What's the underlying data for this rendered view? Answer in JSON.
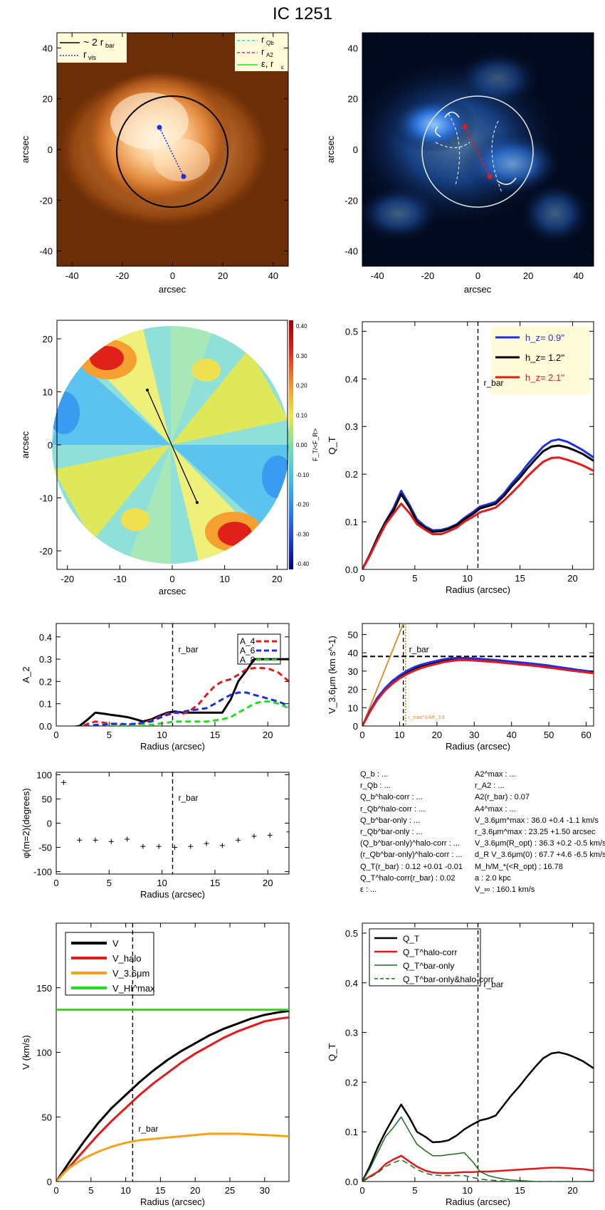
{
  "title": "IC 1251",
  "colors": {
    "black": "#000000",
    "blue": "#1f2fe0",
    "red": "#e01b1b",
    "orange": "#f2a21c",
    "green": "#22dd22",
    "darkgreen": "#1c6e1c",
    "cyan": "#28d8e8",
    "magenta": "#e0287f"
  },
  "panel1": {
    "xlabel": "arcsec",
    "ylabel": "arcsec",
    "ticks": [
      "-40",
      "-20",
      "0",
      "20",
      "40"
    ],
    "legend_left": [
      {
        "label": "~ 2 r",
        "sub": "bar",
        "style": "black-solid"
      },
      {
        "label": "r",
        "sub": "vis",
        "style": "blue-dotted"
      }
    ],
    "legend_right": [
      {
        "label": "r",
        "sub": "Qb",
        "style": "cyan-dashed"
      },
      {
        "label": "r",
        "sub": "A2",
        "style": "magenta-dashed"
      },
      {
        "label": "ε, r",
        "sub": "ε",
        "style": "green-solid"
      }
    ]
  },
  "panel2": {
    "xlabel": "arcsec",
    "ylabel": "arcsec",
    "ticks": [
      "-40",
      "-20",
      "0",
      "20",
      "40"
    ]
  },
  "panel3": {
    "xlabel": "arcsec",
    "ylabel": "arcsec",
    "xticks": [
      "-20",
      "-10",
      "0",
      "10",
      "20"
    ],
    "yticks": [
      "-20",
      "-10",
      "0",
      "10",
      "20"
    ],
    "colorbar_label": "F_T/<F_R>",
    "colorbar_ticks": [
      "0.40",
      "0.30",
      "0.20",
      "0.10",
      "0.00",
      "-0.10",
      "-0.20",
      "-0.30",
      "-0.40"
    ]
  },
  "panel7_text": {
    "left": [
      "Q_b : ...",
      "r_Qb : ...",
      "Q_b^halo-corr : ...",
      "r_Qb^halo-corr : ...",
      "Q_b^bar-only : ...",
      "r_Qb^bar-only : ...",
      "(Q_b^bar-only)^halo-corr : ...",
      "(r_Qb^bar-only)^halo-corr : ...",
      "Q_T(r_bar) : 0.12 +0.01 -0.01",
      "Q_T^halo-corr(r_bar) : 0.02",
      "ε : ..."
    ],
    "right": [
      "A2^max : ...",
      "r_A2 : ...",
      "A2(r_bar) : 0.07",
      "A4^max : ...",
      "V_3.6μm^max : 36.0 +0.4 -1.1 km/s",
      "r_3.6μm^max : 23.25 +1.50 arcsec",
      "V_3.6μm(R_opt) : 36.3 +0.2 -0.5 km/s",
      "d_R V_3.6μm(0) : 67.7 +4.6 -6.5 km/s/kpc",
      "M_h/M_*(<R_opt) : 16.78",
      "a : 2.0 kpc",
      "V_∞ : 160.1 km/s"
    ]
  },
  "chart_data": [
    {
      "id": "qt_hz",
      "type": "line",
      "xlabel": "Radius (arcsec)",
      "ylabel": "Q_T",
      "xlim": [
        0,
        22
      ],
      "ylim": [
        0,
        0.52
      ],
      "xticks": [
        0,
        5,
        10,
        15,
        20
      ],
      "yticks": [
        0.0,
        0.1,
        0.2,
        0.3,
        0.4,
        0.5
      ],
      "vline": {
        "x": 11,
        "label": "r_bar"
      },
      "legend": "top-right",
      "x": [
        0,
        0.7,
        1.5,
        2.2,
        3.0,
        3.7,
        4.5,
        5.2,
        6.0,
        6.7,
        7.5,
        8.2,
        9.0,
        9.7,
        10.5,
        11.2,
        12.0,
        12.7,
        13.5,
        14.2,
        15.0,
        15.7,
        16.5,
        17.2,
        18.0,
        18.7,
        19.5,
        20.2,
        21.0,
        22.0
      ],
      "series": [
        {
          "name": "h_z=  0.9''",
          "color": "#1f2fe0",
          "values": [
            0,
            0.03,
            0.07,
            0.1,
            0.13,
            0.165,
            0.135,
            0.105,
            0.09,
            0.082,
            0.083,
            0.087,
            0.095,
            0.108,
            0.12,
            0.132,
            0.137,
            0.142,
            0.16,
            0.18,
            0.2,
            0.22,
            0.24,
            0.258,
            0.27,
            0.273,
            0.268,
            0.26,
            0.25,
            0.235
          ]
        },
        {
          "name": "h_z=  1.2''",
          "color": "#000000",
          "values": [
            0,
            0.03,
            0.068,
            0.098,
            0.125,
            0.158,
            0.13,
            0.1,
            0.087,
            0.079,
            0.08,
            0.085,
            0.093,
            0.105,
            0.116,
            0.128,
            0.133,
            0.138,
            0.155,
            0.174,
            0.193,
            0.212,
            0.232,
            0.248,
            0.258,
            0.26,
            0.256,
            0.25,
            0.242,
            0.228
          ]
        },
        {
          "name": "h_z=  2.1''",
          "color": "#e01b1b",
          "values": [
            0,
            0.028,
            0.064,
            0.094,
            0.118,
            0.138,
            0.118,
            0.095,
            0.083,
            0.074,
            0.074,
            0.08,
            0.088,
            0.1,
            0.11,
            0.12,
            0.125,
            0.13,
            0.145,
            0.16,
            0.178,
            0.195,
            0.212,
            0.226,
            0.234,
            0.235,
            0.23,
            0.225,
            0.218,
            0.207
          ]
        }
      ]
    },
    {
      "id": "a2",
      "type": "line",
      "xlabel": "Radius (arcsec)",
      "ylabel": "A_2",
      "xlim": [
        0,
        22
      ],
      "ylim": [
        0,
        0.46
      ],
      "xticks": [
        0,
        5,
        10,
        15,
        20
      ],
      "yticks": [
        0.0,
        0.1,
        0.2,
        0.3,
        0.4
      ],
      "vline": {
        "x": 11,
        "label": "r_bar"
      },
      "legend": "top-right",
      "x": [
        0,
        1.5,
        2.2,
        3.0,
        3.7,
        4.5,
        5.2,
        6.0,
        6.7,
        7.5,
        8.2,
        9.0,
        9.7,
        10.5,
        11.2,
        12.0,
        12.7,
        13.5,
        14.2,
        15.0,
        15.7,
        16.5,
        17.2,
        18.0,
        18.7,
        19.5,
        20.2,
        21.0,
        22.0
      ],
      "series": [
        {
          "name": "A2",
          "color": "#000000",
          "style": "solid",
          "values": [
            -0.01,
            -0.005,
            0,
            0.03,
            0.06,
            0.055,
            0.05,
            0.045,
            0.04,
            0.03,
            0.02,
            0.03,
            0.045,
            0.06,
            0.065,
            0.06,
            0.06,
            0.06,
            0.06,
            0.06,
            0.06,
            0.12,
            0.2,
            0.25,
            0.3,
            0.3,
            0.3,
            0.3,
            0.3
          ]
        },
        {
          "name": "A_4",
          "color": "#e01b1b",
          "style": "dashed",
          "values": [
            -0.01,
            -0.008,
            -0.005,
            0.01,
            0.02,
            0.015,
            0.01,
            0.005,
            0.005,
            0.008,
            0.015,
            0.025,
            0.04,
            0.055,
            0.06,
            0.055,
            0.07,
            0.1,
            0.14,
            0.18,
            0.2,
            0.21,
            0.23,
            0.255,
            0.26,
            0.26,
            0.255,
            0.24,
            0.2
          ]
        },
        {
          "name": "A_6",
          "color": "#1f2fe0",
          "style": "dashed",
          "values": [
            -0.01,
            -0.008,
            -0.005,
            0,
            0.005,
            0.005,
            0.01,
            0.01,
            0.008,
            0.01,
            0.015,
            0.02,
            0.035,
            0.05,
            0.06,
            0.065,
            0.07,
            0.075,
            0.08,
            0.1,
            0.12,
            0.14,
            0.15,
            0.15,
            0.14,
            0.13,
            0.12,
            0.11,
            0.09
          ]
        },
        {
          "name": "A_8",
          "color": "#22dd22",
          "style": "dashed",
          "values": [
            -0.01,
            -0.01,
            -0.01,
            -0.01,
            -0.005,
            -0.005,
            0,
            0,
            0,
            0,
            0.005,
            0.005,
            0.01,
            0.015,
            0.02,
            0.02,
            0.02,
            0.02,
            0.02,
            0.025,
            0.03,
            0.04,
            0.06,
            0.08,
            0.1,
            0.11,
            0.11,
            0.1,
            0.08
          ]
        }
      ]
    },
    {
      "id": "v36",
      "type": "line",
      "xlabel": "Radius (arcsec)",
      "ylabel": "V_3.6μm (km s^-1)",
      "xlim": [
        0,
        62
      ],
      "ylim": [
        0,
        56
      ],
      "xticks": [
        0,
        10,
        20,
        30,
        40,
        50,
        60
      ],
      "yticks": [
        0,
        10,
        20,
        30,
        40,
        50
      ],
      "hline": {
        "y": 38
      },
      "vline": {
        "x": 11,
        "label": "r_bar"
      },
      "vline2": {
        "x": 11.6,
        "label": "r_max^1/4R_3.6"
      },
      "x": [
        0,
        2,
        4,
        6,
        8,
        10,
        12,
        14,
        16,
        18,
        20,
        22,
        24,
        26,
        28,
        30,
        32,
        34,
        36,
        38,
        40,
        42,
        44,
        46,
        48,
        50,
        52,
        54,
        56,
        58,
        60,
        62
      ],
      "series": [
        {
          "name": "black",
          "color": "#000000",
          "values": [
            0,
            8,
            15,
            20,
            24,
            27,
            29.5,
            31.5,
            33,
            34,
            35,
            36,
            36.5,
            36.8,
            36.7,
            36.5,
            36.2,
            36,
            35.7,
            35.3,
            35,
            34.6,
            34.2,
            33.8,
            33.3,
            32.8,
            32.2,
            31.6,
            31,
            30.5,
            30,
            29.5
          ]
        },
        {
          "name": "blue",
          "color": "#1f2fe0",
          "values": [
            0,
            8.2,
            15.3,
            20.4,
            24.5,
            27.6,
            30.2,
            32.2,
            33.6,
            34.7,
            35.6,
            36.5,
            37,
            37.2,
            37.1,
            36.9,
            36.6,
            36.3,
            36,
            35.6,
            35.2,
            34.8,
            34.4,
            34,
            33.5,
            33,
            32.4,
            31.8,
            31.2,
            30.6,
            30.1,
            29.6
          ]
        },
        {
          "name": "red",
          "color": "#e01b1b",
          "values": [
            0,
            7.6,
            14.2,
            19.2,
            23,
            26,
            28.4,
            30.3,
            31.8,
            33,
            34,
            35,
            35.6,
            36,
            36,
            35.8,
            35.5,
            35.2,
            34.9,
            34.5,
            34.1,
            33.7,
            33.3,
            32.9,
            32.4,
            31.9,
            31.4,
            30.8,
            30.3,
            29.8,
            29.3,
            28.8
          ]
        }
      ],
      "tangent": {
        "color": "#d98a2a",
        "x": [
          0,
          11
        ],
        "y": [
          0,
          56
        ]
      }
    },
    {
      "id": "phase",
      "type": "scatter",
      "xlabel": "Radius (arcsec)",
      "ylabel": "φ(m=2)(degrees)",
      "xlim": [
        0,
        22
      ],
      "ylim": [
        -105,
        105
      ],
      "xticks": [
        0,
        5,
        10,
        15,
        20
      ],
      "yticks": [
        -100,
        -50,
        0,
        50,
        100
      ],
      "vline": {
        "x": 11,
        "label": "r_bar"
      },
      "points": [
        [
          0.7,
          84
        ],
        [
          2.2,
          -35
        ],
        [
          3.7,
          -35
        ],
        [
          5.2,
          -38
        ],
        [
          6.7,
          -33
        ],
        [
          8.2,
          -48
        ],
        [
          9.7,
          -48
        ],
        [
          11.2,
          -50
        ],
        [
          12.7,
          -48
        ],
        [
          14.2,
          -42
        ],
        [
          15.7,
          -46
        ],
        [
          17.2,
          -35
        ],
        [
          18.7,
          -27
        ],
        [
          20.2,
          -25
        ],
        [
          22,
          -18
        ]
      ]
    },
    {
      "id": "rotation",
      "type": "line",
      "xlabel": "Radius (arcsec)",
      "ylabel": "V (km/s)",
      "xlim": [
        0,
        33.5
      ],
      "ylim": [
        0,
        200
      ],
      "xticks": [
        0,
        5,
        10,
        15,
        20,
        25,
        30
      ],
      "yticks": [
        0,
        50,
        100,
        150
      ],
      "vline": {
        "x": 11,
        "label": "r_bar"
      },
      "legend": "top-left",
      "x": [
        0,
        1,
        2,
        4,
        6,
        8,
        10,
        12,
        14,
        16,
        18,
        20,
        22,
        24,
        26,
        28,
        30,
        32,
        33.5
      ],
      "series": [
        {
          "name": "V",
          "color": "#000000",
          "values": [
            0,
            8,
            16,
            31,
            45,
            57,
            67,
            77,
            86,
            94,
            101,
            107,
            113,
            118,
            122,
            126,
            129,
            131,
            132
          ]
        },
        {
          "name": "V_halo",
          "color": "#e01b1b",
          "values": [
            0,
            6,
            12,
            24,
            36,
            47,
            57,
            67,
            76,
            84,
            92,
            99,
            105,
            111,
            116,
            120,
            124,
            126,
            127
          ]
        },
        {
          "name": "V_3.6μm",
          "color": "#f2a21c",
          "values": [
            0,
            6,
            11,
            18,
            23,
            27,
            30,
            32,
            33,
            34,
            35,
            36,
            37,
            37,
            37,
            36.5,
            36,
            35.5,
            35
          ]
        },
        {
          "name": "V_HI^max",
          "color": "#22dd22",
          "values": [
            133,
            133,
            133,
            133,
            133,
            133,
            133,
            133,
            133,
            133,
            133,
            133,
            133,
            133,
            133,
            133,
            133,
            133,
            133
          ]
        }
      ]
    },
    {
      "id": "qt_halo",
      "type": "line",
      "xlabel": "Radius (arcsec)",
      "ylabel": "Q_T",
      "xlim": [
        0,
        22
      ],
      "ylim": [
        0,
        0.52
      ],
      "xticks": [
        0,
        5,
        10,
        15,
        20
      ],
      "yticks": [
        0.0,
        0.1,
        0.2,
        0.3,
        0.4,
        0.5
      ],
      "vline": {
        "x": 11,
        "label": "r_bar"
      },
      "legend": "top-left",
      "x": [
        0,
        0.7,
        1.5,
        2.2,
        3.0,
        3.7,
        4.5,
        5.2,
        6.0,
        6.7,
        7.5,
        8.2,
        9.0,
        9.7,
        10.5,
        11.2,
        12.0,
        12.7,
        13.5,
        14.2,
        15.0,
        15.7,
        16.5,
        17.2,
        18.0,
        18.7,
        19.5,
        20.2,
        21.0,
        22.0
      ],
      "series": [
        {
          "name": "Q_T",
          "color": "#000000",
          "style": "solid",
          "width": 2.5,
          "values": [
            0,
            0.03,
            0.07,
            0.1,
            0.13,
            0.155,
            0.128,
            0.1,
            0.09,
            0.079,
            0.08,
            0.083,
            0.093,
            0.105,
            0.115,
            0.123,
            0.127,
            0.133,
            0.155,
            0.174,
            0.193,
            0.212,
            0.232,
            0.248,
            0.258,
            0.26,
            0.256,
            0.25,
            0.242,
            0.228
          ]
        },
        {
          "name": "Q_T^halo-corr",
          "color": "#e01b1b",
          "style": "solid",
          "width": 2.5,
          "values": [
            0,
            0.01,
            0.02,
            0.035,
            0.045,
            0.052,
            0.04,
            0.03,
            0.022,
            0.018,
            0.017,
            0.017,
            0.018,
            0.019,
            0.019,
            0.02,
            0.02,
            0.021,
            0.022,
            0.023,
            0.024,
            0.025,
            0.026,
            0.027,
            0.028,
            0.028,
            0.027,
            0.026,
            0.025,
            0.022
          ]
        },
        {
          "name": "Q_T^bar-only",
          "color": "#1c6e1c",
          "style": "solid",
          "width": 1.5,
          "values": [
            0,
            0.025,
            0.06,
            0.09,
            0.11,
            0.13,
            0.1,
            0.075,
            0.062,
            0.052,
            0.052,
            0.054,
            0.056,
            0.058,
            0.04,
            0.02,
            0.012,
            0.008,
            0.005,
            0.003,
            0.002,
            0.001,
            0,
            0,
            0,
            0,
            0,
            0,
            0,
            0
          ]
        },
        {
          "name": "Q_T^bar-only&halo-corr",
          "color": "#1c6e1c",
          "style": "dashed",
          "width": 1.5,
          "values": [
            0,
            0.008,
            0.018,
            0.03,
            0.038,
            0.044,
            0.034,
            0.024,
            0.017,
            0.013,
            0.012,
            0.012,
            0.012,
            0.012,
            0.008,
            0.005,
            0.003,
            0.002,
            0.001,
            0,
            0,
            0,
            0,
            0,
            0,
            0,
            0,
            0,
            0,
            0
          ]
        }
      ]
    }
  ]
}
